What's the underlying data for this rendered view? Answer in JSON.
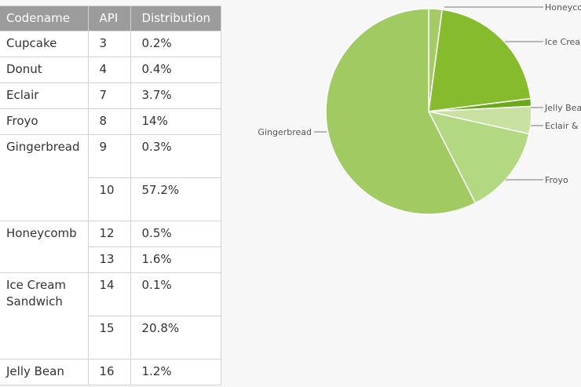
{
  "table": {
    "headers": [
      "Codename",
      "API",
      "Distribution"
    ],
    "rows": [
      {
        "codename": "Cupcake",
        "api": "3",
        "dist": "0.2%"
      },
      {
        "codename": "Donut",
        "api": "4",
        "dist": "0.4%"
      },
      {
        "codename": "Eclair",
        "api": "7",
        "dist": "3.7%"
      },
      {
        "codename": "Froyo",
        "api": "8",
        "dist": "14%"
      },
      {
        "codename": "Gingerbread",
        "api": "9",
        "dist": "0.3%"
      },
      {
        "codename": "",
        "api": "10",
        "dist": "57.2%"
      },
      {
        "codename": "Honeycomb",
        "api": "12",
        "dist": "0.5%"
      },
      {
        "codename": "",
        "api": "13",
        "dist": "1.6%"
      },
      {
        "codename": "Ice Cream Sandwich",
        "api": "14",
        "dist": "0.1%"
      },
      {
        "codename": "",
        "api": "15",
        "dist": "20.8%"
      },
      {
        "codename": "Jelly Bean",
        "api": "16",
        "dist": "1.2%"
      }
    ]
  },
  "chart_data": {
    "type": "pie",
    "start": "top, clockwise",
    "slices": [
      {
        "label": "Honeycomb",
        "value": 2.1,
        "color": "#a4cb66"
      },
      {
        "label": "Ice Cream Sandwich",
        "value": 20.9,
        "color": "#86bb2e"
      },
      {
        "label": "Jelly Bean",
        "value": 1.2,
        "color": "#6aa81c"
      },
      {
        "label": "Eclair & older",
        "value": 4.3,
        "color": "#c8e1a0"
      },
      {
        "label": "Froyo",
        "value": 14,
        "color": "#b2d882"
      },
      {
        "label": "Gingerbread",
        "value": 57.5,
        "color": "#a1ca63"
      }
    ],
    "labels": {
      "honeycomb": "Honeyco",
      "ics": "Ice Crea",
      "jelly_bean": "Jelly Bea",
      "eclair": "Eclair &",
      "froyo": "Froyo",
      "gingerbread": "Gingerbread"
    }
  }
}
